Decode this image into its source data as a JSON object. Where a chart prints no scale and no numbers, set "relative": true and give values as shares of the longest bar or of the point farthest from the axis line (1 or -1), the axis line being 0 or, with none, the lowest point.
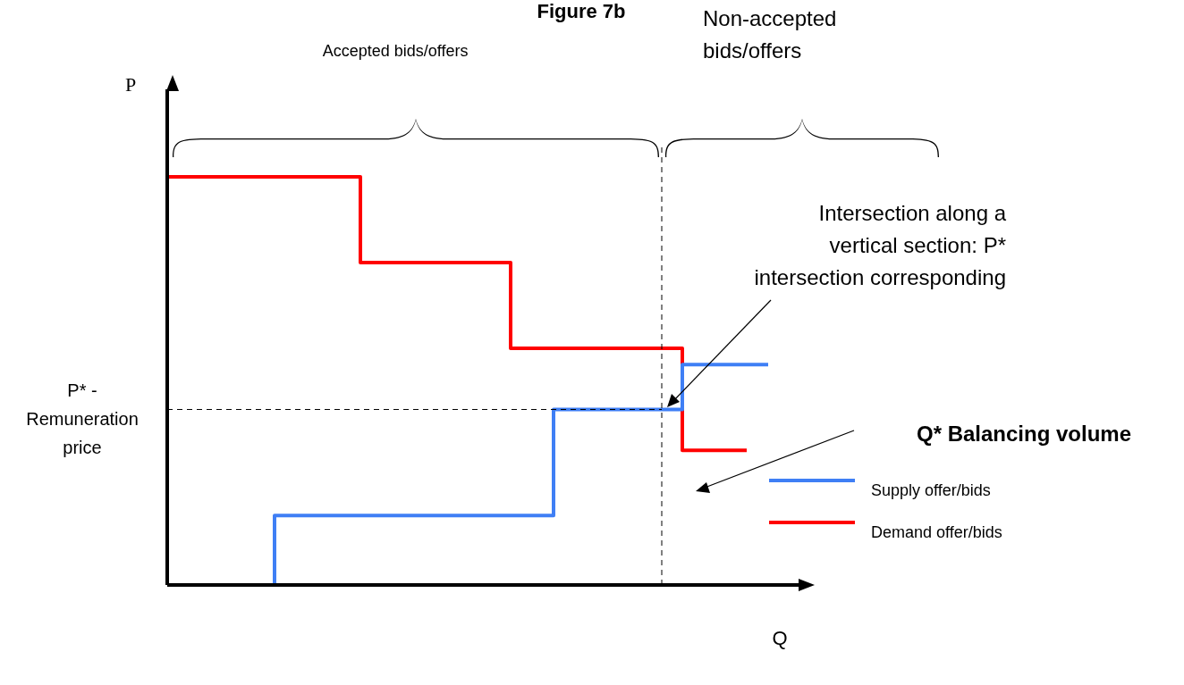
{
  "chart_data": {
    "type": "step",
    "title": "Figure 7b",
    "xlabel": "Q",
    "ylabel": "P",
    "relative": true,
    "marker": "none",
    "legend": "right",
    "categories": [
      null,
      null,
      null,
      null,
      null,
      null,
      null,
      null,
      null,
      null,
      null,
      null,
      null,
      null,
      null,
      null,
      null,
      null,
      null,
      null,
      null,
      null,
      null,
      null,
      null,
      null,
      null,
      null,
      null,
      null,
      null
    ],
    "series": [
      {
        "name": "Supply offer/bids",
        "color": "#3f7ff5",
        "values": [
          null,
          null,
          null,
          null,
          0,
          0.17,
          0.17,
          0.17,
          0.17,
          0.17,
          0.17,
          0.17,
          0.17,
          0.17,
          0.17,
          0.17,
          0.17,
          0.17,
          0.43,
          0.43,
          0.43,
          0.43,
          0.43,
          0.43,
          0.54,
          0.54,
          0.54,
          0.54,
          0.54,
          null,
          null
        ]
      },
      {
        "name": "Demand offer/bids",
        "color": "#ff0000",
        "values": [
          1,
          1,
          1,
          1,
          1,
          1,
          1,
          1,
          1,
          0.79,
          0.79,
          0.79,
          0.79,
          0.79,
          0.79,
          0.79,
          0.58,
          0.58,
          0.58,
          0.58,
          0.58,
          0.58,
          0.58,
          0.58,
          0.33,
          0.33,
          0.33,
          0.33,
          null,
          null,
          null
        ]
      }
    ],
    "ref_lines": [
      {
        "axis": "y",
        "value": 0.43,
        "label": "P* - Remuneration price",
        "line_style": "dashed"
      }
    ],
    "annotations": [
      "Accepted bids/offers",
      "Non-accepted bids/offers",
      "Intersection along a vertical section: P* intersection corresponding",
      "Q* Balancing volume"
    ]
  }
}
